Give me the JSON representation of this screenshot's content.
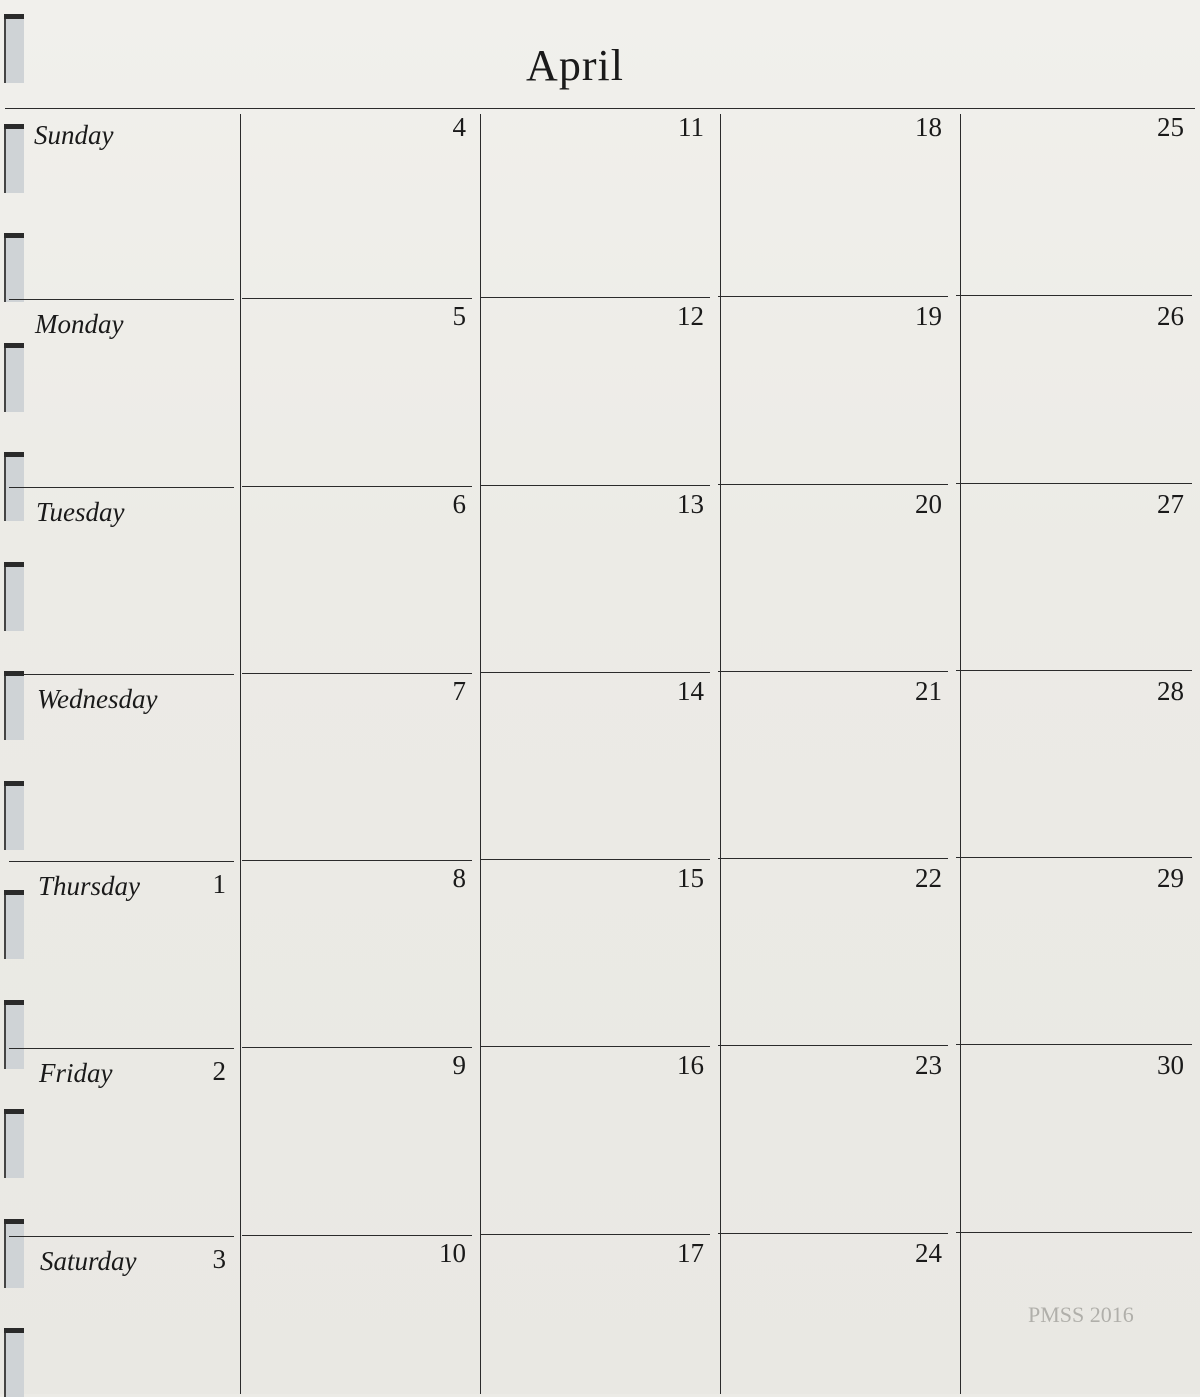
{
  "title": "April",
  "days": [
    "Sunday",
    "Monday",
    "Tuesday",
    "Wednesday",
    "Thursday",
    "Friday",
    "Saturday"
  ],
  "label_column_dates": [
    "",
    "",
    "",
    "",
    "1",
    "2",
    "3"
  ],
  "weeks": [
    [
      "4",
      "5",
      "6",
      "7",
      "8",
      "9",
      "10"
    ],
    [
      "11",
      "12",
      "13",
      "14",
      "15",
      "16",
      "17"
    ],
    [
      "18",
      "19",
      "20",
      "21",
      "22",
      "23",
      "24"
    ],
    [
      "25",
      "26",
      "27",
      "28",
      "29",
      "30",
      ""
    ]
  ],
  "watermark": "PMSS 2016"
}
